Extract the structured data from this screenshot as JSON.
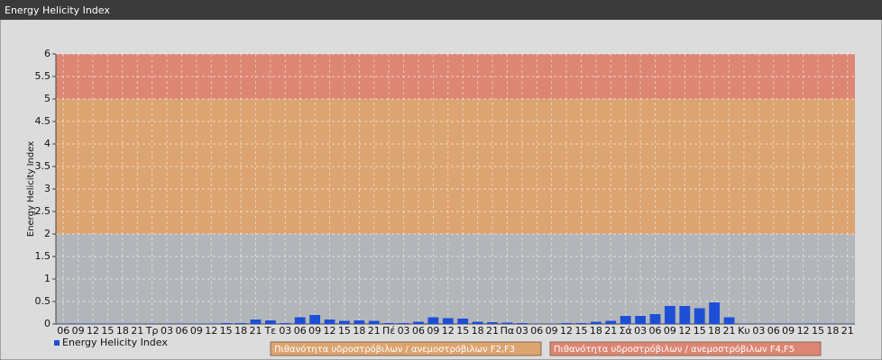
{
  "chart_data": {
    "type": "bar",
    "title": "Energy Helicity Index",
    "y_label": "Energy Helicity Index",
    "categories": [
      "06",
      "09",
      "12",
      "15",
      "18",
      "21",
      "Τρ",
      "03",
      "06",
      "09",
      "12",
      "15",
      "18",
      "21",
      "Τε",
      "03",
      "06",
      "09",
      "12",
      "15",
      "18",
      "21",
      "Πέ",
      "03",
      "06",
      "09",
      "12",
      "15",
      "18",
      "21",
      "Πα",
      "03",
      "06",
      "09",
      "12",
      "15",
      "18",
      "21",
      "Σά",
      "03",
      "06",
      "09",
      "12",
      "15",
      "18",
      "21",
      "Κυ",
      "03",
      "06",
      "09",
      "12",
      "15",
      "18",
      "21"
    ],
    "series": [
      {
        "name": "Energy Helicity Index",
        "color": "#1d4fd6",
        "values": [
          0.01,
          0.01,
          0.01,
          0.01,
          0.01,
          0.01,
          0.01,
          0.01,
          0.01,
          0.01,
          0.01,
          0.02,
          0.02,
          0.1,
          0.08,
          0.02,
          0.15,
          0.2,
          0.1,
          0.07,
          0.08,
          0.07,
          0.02,
          0.02,
          0.05,
          0.15,
          0.13,
          0.12,
          0.05,
          0.04,
          0.03,
          0.02,
          0.01,
          0.01,
          0.02,
          0.02,
          0.05,
          0.07,
          0.18,
          0.18,
          0.22,
          0.4,
          0.4,
          0.35,
          0.48,
          0.15,
          0.01,
          0.01,
          0.01,
          0.01,
          0.01,
          0.01,
          0.01,
          0.01
        ]
      }
    ],
    "bands": [
      {
        "from": 0,
        "to": 2,
        "color": "#b2b6ba"
      },
      {
        "from": 2,
        "to": 5,
        "color": "#dca470",
        "label": "Πιθανότητα υδροστρόβιλων / ανεμοστρόβιλων F2,F3"
      },
      {
        "from": 5,
        "to": 6,
        "color": "#dd8673",
        "label": "Πιθανότητα υδροστρόβιλων / ανεμοστρόβιλων F4,F5"
      }
    ],
    "ylim": [
      0,
      6
    ],
    "yticks": [
      0,
      0.5,
      1,
      1.5,
      2,
      2.5,
      3,
      3.5,
      4,
      4.5,
      5,
      5.5,
      6
    ],
    "grid": true
  }
}
